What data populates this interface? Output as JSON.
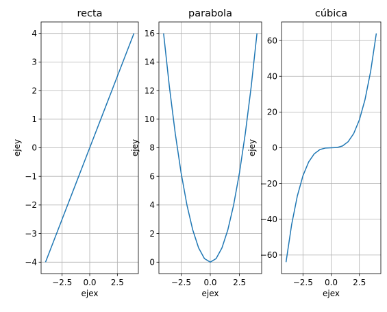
{
  "figure": {
    "line_color": "#1f77b4",
    "grid_color": "#b0b0b0"
  },
  "chart_data": [
    {
      "type": "line",
      "title": "recta",
      "xlabel": "ejex",
      "ylabel": "ejey",
      "function": "y = x",
      "xlim": [
        -4.4,
        4.4
      ],
      "ylim": [
        -4.4,
        4.4
      ],
      "xticks": [
        -2.5,
        0.0,
        2.5
      ],
      "xtick_labels": [
        "−2.5",
        "0.0",
        "2.5"
      ],
      "yticks": [
        -4,
        -3,
        -2,
        -1,
        0,
        1,
        2,
        3,
        4
      ],
      "ytick_labels": [
        "−4",
        "−3",
        "−2",
        "−1",
        "0",
        "1",
        "2",
        "3",
        "4"
      ],
      "grid": true,
      "series": [
        {
          "x": [
            -4,
            -3.5,
            -3,
            -2.5,
            -2,
            -1.5,
            -1,
            -0.5,
            0,
            0.5,
            1,
            1.5,
            2,
            2.5,
            3,
            3.5,
            4
          ],
          "y": [
            -4,
            -3.5,
            -3,
            -2.5,
            -2,
            -1.5,
            -1,
            -0.5,
            0,
            0.5,
            1,
            1.5,
            2,
            2.5,
            3,
            3.5,
            4
          ]
        }
      ]
    },
    {
      "type": "line",
      "title": "parabola",
      "xlabel": "ejex",
      "ylabel": "ejey",
      "function": "y = x^2",
      "xlim": [
        -4.4,
        4.4
      ],
      "ylim": [
        -0.8,
        16.8
      ],
      "xticks": [
        -2.5,
        0.0,
        2.5
      ],
      "xtick_labels": [
        "−2.5",
        "0.0",
        "2.5"
      ],
      "yticks": [
        0,
        2,
        4,
        6,
        8,
        10,
        12,
        14,
        16
      ],
      "ytick_labels": [
        "0",
        "2",
        "4",
        "6",
        "8",
        "10",
        "12",
        "14",
        "16"
      ],
      "grid": true,
      "series": [
        {
          "x": [
            -4,
            -3.5,
            -3,
            -2.5,
            -2,
            -1.5,
            -1,
            -0.5,
            0,
            0.5,
            1,
            1.5,
            2,
            2.5,
            3,
            3.5,
            4
          ],
          "y": [
            16,
            12.25,
            9,
            6.25,
            4,
            2.25,
            1,
            0.25,
            0,
            0.25,
            1,
            2.25,
            4,
            6.25,
            9,
            12.25,
            16
          ]
        }
      ]
    },
    {
      "type": "line",
      "title": "cúbica",
      "xlabel": "ejex",
      "ylabel": "ejey",
      "function": "y = x^3",
      "xlim": [
        -4.4,
        4.4
      ],
      "ylim": [
        -70.4,
        70.4
      ],
      "xticks": [
        -2.5,
        0.0,
        2.5
      ],
      "xtick_labels": [
        "−2.5",
        "0.0",
        "2.5"
      ],
      "yticks": [
        -60,
        -40,
        -20,
        0,
        20,
        40,
        60
      ],
      "ytick_labels": [
        "−60",
        "−40",
        "−20",
        "0",
        "20",
        "40",
        "60"
      ],
      "grid": true,
      "series": [
        {
          "x": [
            -4,
            -3.5,
            -3,
            -2.5,
            -2,
            -1.5,
            -1,
            -0.5,
            0,
            0.5,
            1,
            1.5,
            2,
            2.5,
            3,
            3.5,
            4
          ],
          "y": [
            -64,
            -42.875,
            -27,
            -15.625,
            -8,
            -3.375,
            -1,
            -0.125,
            0,
            0.125,
            1,
            3.375,
            8,
            15.625,
            27,
            42.875,
            64
          ]
        }
      ]
    }
  ]
}
